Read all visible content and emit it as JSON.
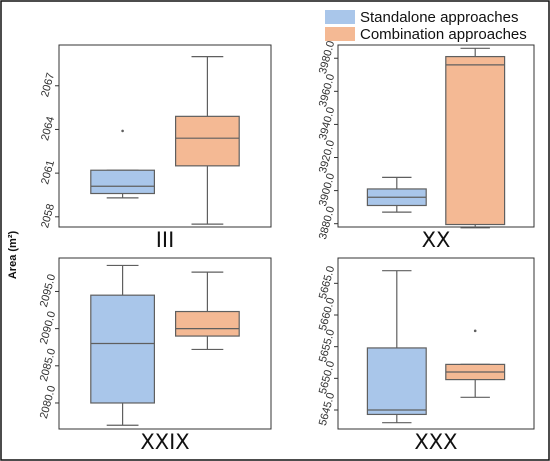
{
  "colors": {
    "standalone": "#a9c6ea",
    "combination": "#f4b994",
    "line": "#5f5f5f",
    "frame": "#333333",
    "outer": "#111111"
  },
  "chart_data": {
    "type": "box",
    "ylabel": "Area (m²)",
    "legend": {
      "placement": "top-right",
      "entries": [
        "Standalone approaches",
        "Combination approaches"
      ]
    },
    "panels": [
      {
        "label": "III",
        "ylim": [
          2057.3,
          2069.8
        ],
        "ticks": [
          2058,
          2061,
          2064,
          2067
        ],
        "tick_labels": [
          "2058",
          "2061",
          "2064",
          "2067"
        ],
        "boxes": [
          {
            "series": "Standalone approaches",
            "whisker_low": 2059.3,
            "q1": 2059.6,
            "median": 2060.1,
            "q3": 2061.2,
            "whisker_high": 2061.2,
            "outliers": [
              2063.9
            ]
          },
          {
            "series": "Combination approaches",
            "whisker_low": 2057.5,
            "q1": 2061.5,
            "median": 2063.4,
            "q3": 2064.9,
            "whisker_high": 2069.0,
            "outliers": []
          }
        ]
      },
      {
        "label": "XX",
        "ylim": [
          3878,
          3988
        ],
        "ticks": [
          3880,
          3900,
          3920,
          3940,
          3960,
          3980
        ],
        "tick_labels": [
          "3880.0",
          "3900.0",
          "3920.0",
          "3940.0",
          "3960.0",
          "3980.0"
        ],
        "boxes": [
          {
            "series": "Standalone approaches",
            "whisker_low": 3887,
            "q1": 3891,
            "median": 3896,
            "q3": 3901,
            "whisker_high": 3908,
            "outliers": []
          },
          {
            "series": "Combination approaches",
            "whisker_low": 3877.5,
            "q1": 3879.5,
            "median": 3976,
            "q3": 3981,
            "whisker_high": 3986,
            "outliers": []
          }
        ]
      },
      {
        "label": "XXIX",
        "ylim": [
          2076.5,
          2099.5
        ],
        "ticks": [
          2080,
          2085,
          2090,
          2095
        ],
        "tick_labels": [
          "2080.0",
          "2085.0",
          "2090.0",
          "2095.0"
        ],
        "boxes": [
          {
            "series": "Standalone approaches",
            "whisker_low": 2077,
            "q1": 2080,
            "median": 2088,
            "q3": 2094.5,
            "whisker_high": 2098.5,
            "outliers": []
          },
          {
            "series": "Combination approaches",
            "whisker_low": 2087.2,
            "q1": 2089,
            "median": 2090,
            "q3": 2092.3,
            "whisker_high": 2097.6,
            "outliers": []
          }
        ]
      },
      {
        "label": "XXX",
        "ylim": [
          5642,
          5669
        ],
        "ticks": [
          5645,
          5650,
          5655,
          5660,
          5665
        ],
        "tick_labels": [
          "5645.0",
          "5650.0",
          "5655.0",
          "5660.0",
          "5665.0"
        ],
        "boxes": [
          {
            "series": "Standalone approaches",
            "whisker_low": 5643,
            "q1": 5644.3,
            "median": 5645,
            "q3": 5654.8,
            "whisker_high": 5667,
            "outliers": []
          },
          {
            "series": "Combination approaches",
            "whisker_low": 5647,
            "q1": 5649.8,
            "median": 5651,
            "q3": 5652.2,
            "whisker_high": 5652.2,
            "outliers": [
              5657.5
            ]
          }
        ]
      }
    ]
  }
}
